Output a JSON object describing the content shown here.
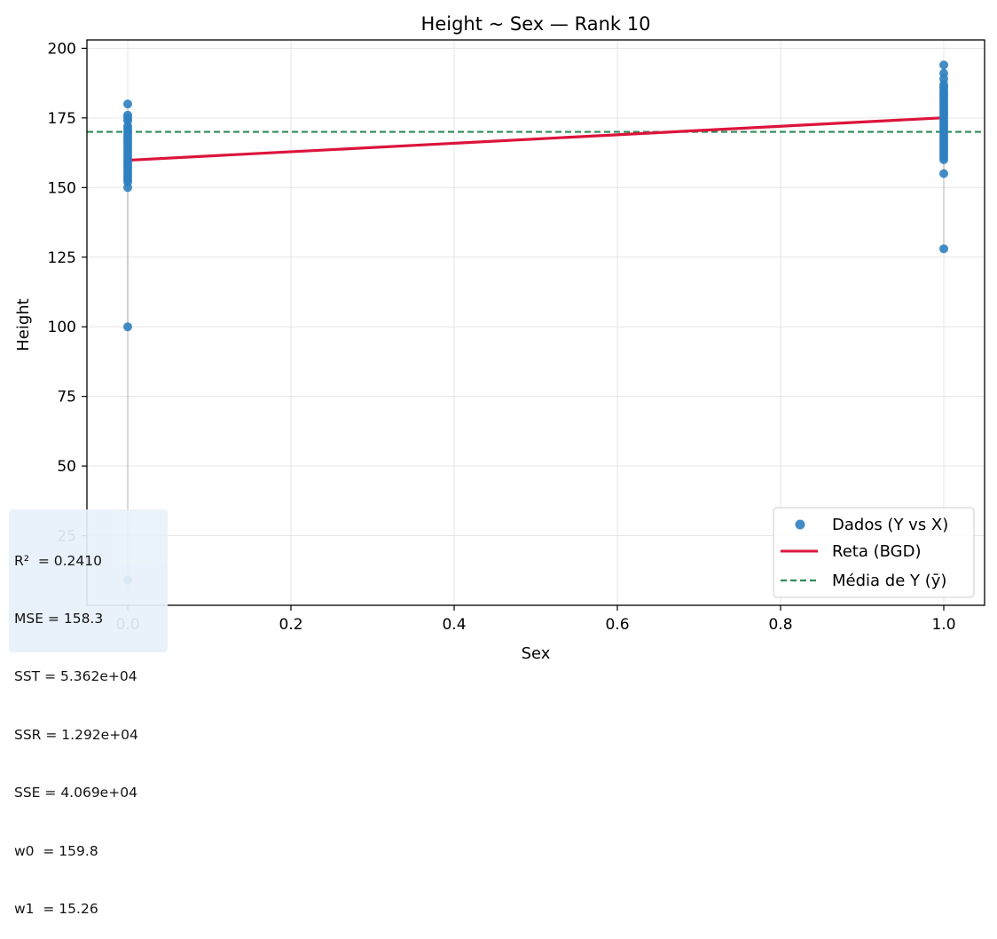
{
  "chart_data": {
    "type": "scatter",
    "title": "Height ~ Sex — Rank 10",
    "xlabel": "Sex",
    "ylabel": "Height",
    "xlim": [
      -0.05,
      1.05
    ],
    "ylim": [
      0,
      203
    ],
    "xticks": [
      "0.0",
      "0.2",
      "0.4",
      "0.6",
      "0.8",
      "1.0"
    ],
    "yticks": [
      "25",
      "50",
      "75",
      "100",
      "125",
      "150",
      "175",
      "200"
    ],
    "grid": true,
    "legend_position": "lower right",
    "legend": [
      "Dados (Y vs X)",
      "Reta (BGD)",
      "Média de Y (ȳ)"
    ],
    "series": [
      {
        "name": "Dados (Y vs X)",
        "kind": "scatter",
        "color": "#2f7fc0",
        "points": [
          {
            "x": 0,
            "y": 180
          },
          {
            "x": 0,
            "y": 176
          },
          {
            "x": 0,
            "y": 175
          },
          {
            "x": 0,
            "y": 174
          },
          {
            "x": 0,
            "y": 172
          },
          {
            "x": 0,
            "y": 171
          },
          {
            "x": 0,
            "y": 170
          },
          {
            "x": 0,
            "y": 169
          },
          {
            "x": 0,
            "y": 168
          },
          {
            "x": 0,
            "y": 167
          },
          {
            "x": 0,
            "y": 166
          },
          {
            "x": 0,
            "y": 165
          },
          {
            "x": 0,
            "y": 164
          },
          {
            "x": 0,
            "y": 163
          },
          {
            "x": 0,
            "y": 162
          },
          {
            "x": 0,
            "y": 161
          },
          {
            "x": 0,
            "y": 160
          },
          {
            "x": 0,
            "y": 159
          },
          {
            "x": 0,
            "y": 158
          },
          {
            "x": 0,
            "y": 157
          },
          {
            "x": 0,
            "y": 156
          },
          {
            "x": 0,
            "y": 155
          },
          {
            "x": 0,
            "y": 154
          },
          {
            "x": 0,
            "y": 153
          },
          {
            "x": 0,
            "y": 152
          },
          {
            "x": 0,
            "y": 150
          },
          {
            "x": 0,
            "y": 100
          },
          {
            "x": 0,
            "y": 9
          },
          {
            "x": 1,
            "y": 194
          },
          {
            "x": 1,
            "y": 191
          },
          {
            "x": 1,
            "y": 189
          },
          {
            "x": 1,
            "y": 187
          },
          {
            "x": 1,
            "y": 186
          },
          {
            "x": 1,
            "y": 185
          },
          {
            "x": 1,
            "y": 184
          },
          {
            "x": 1,
            "y": 183
          },
          {
            "x": 1,
            "y": 182
          },
          {
            "x": 1,
            "y": 181
          },
          {
            "x": 1,
            "y": 180
          },
          {
            "x": 1,
            "y": 179
          },
          {
            "x": 1,
            "y": 178
          },
          {
            "x": 1,
            "y": 177
          },
          {
            "x": 1,
            "y": 176
          },
          {
            "x": 1,
            "y": 175
          },
          {
            "x": 1,
            "y": 174
          },
          {
            "x": 1,
            "y": 173
          },
          {
            "x": 1,
            "y": 172
          },
          {
            "x": 1,
            "y": 171
          },
          {
            "x": 1,
            "y": 170
          },
          {
            "x": 1,
            "y": 169
          },
          {
            "x": 1,
            "y": 168
          },
          {
            "x": 1,
            "y": 167
          },
          {
            "x": 1,
            "y": 166
          },
          {
            "x": 1,
            "y": 165
          },
          {
            "x": 1,
            "y": 164
          },
          {
            "x": 1,
            "y": 163
          },
          {
            "x": 1,
            "y": 162
          },
          {
            "x": 1,
            "y": 161
          },
          {
            "x": 1,
            "y": 160
          },
          {
            "x": 1,
            "y": 155
          },
          {
            "x": 1,
            "y": 128
          }
        ]
      },
      {
        "name": "Reta (BGD)",
        "kind": "line",
        "color": "#dc143c",
        "x": [
          0,
          1
        ],
        "y": [
          159.8,
          175.06
        ]
      },
      {
        "name": "Média de Y (ȳ)",
        "kind": "hline",
        "color": "#2e8b57",
        "y": 170
      }
    ],
    "stats_lines": [
      "R²  = 0.2410",
      "MSE = 158.3",
      "SST = 5.362e+04",
      "SSR = 1.292e+04",
      "SSE = 4.069e+04",
      "w0  = 159.8",
      "w1  = 15.26"
    ]
  }
}
